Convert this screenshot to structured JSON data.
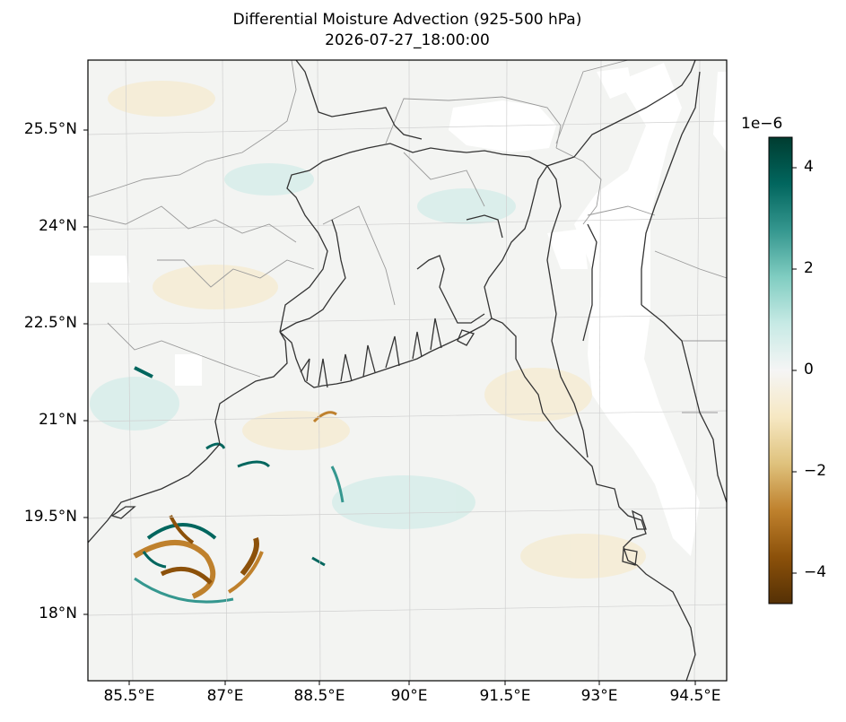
{
  "title": "Differential Moisture Advection (925-500 hPa)",
  "subtitle": "2026-07-27_18:00:00",
  "colorbar": {
    "exponent_label": "1e−6",
    "ticks": [
      {
        "label": "4",
        "value": 4
      },
      {
        "label": "2",
        "value": 2
      },
      {
        "label": "0",
        "value": 0
      },
      {
        "label": "−2",
        "value": -2
      },
      {
        "label": "−4",
        "value": -4
      }
    ],
    "range": [
      -4.6,
      4.6
    ],
    "colormap": "BrBG",
    "colors": [
      "#543005",
      "#8c510a",
      "#bf812d",
      "#dfc27d",
      "#f6e8c3",
      "#f5f5f5",
      "#c7eae5",
      "#80cdc1",
      "#35978f",
      "#01665e",
      "#003c30"
    ]
  },
  "axes": {
    "lat_labels": [
      "25.5°N",
      "24°N",
      "22.5°N",
      "21°N",
      "19.5°N",
      "18°N"
    ],
    "lon_labels": [
      "85.5°E",
      "87°E",
      "88.5°E",
      "90°E",
      "91.5°E",
      "93°E",
      "94.5°E"
    ],
    "lat_values": [
      25.5,
      24,
      22.5,
      21,
      19.5,
      18
    ],
    "lon_values": [
      85.5,
      87,
      88.5,
      90,
      91.5,
      93,
      94.5
    ],
    "lon_range": [
      84.9,
      94.9
    ],
    "lat_range": [
      17.0,
      26.7
    ]
  },
  "map": {
    "field_colors": {
      "background": "#f3f4f2",
      "masked": "#ffffff",
      "coast": "#333333",
      "border": "#999999",
      "grid": "#d0d0d0"
    }
  }
}
